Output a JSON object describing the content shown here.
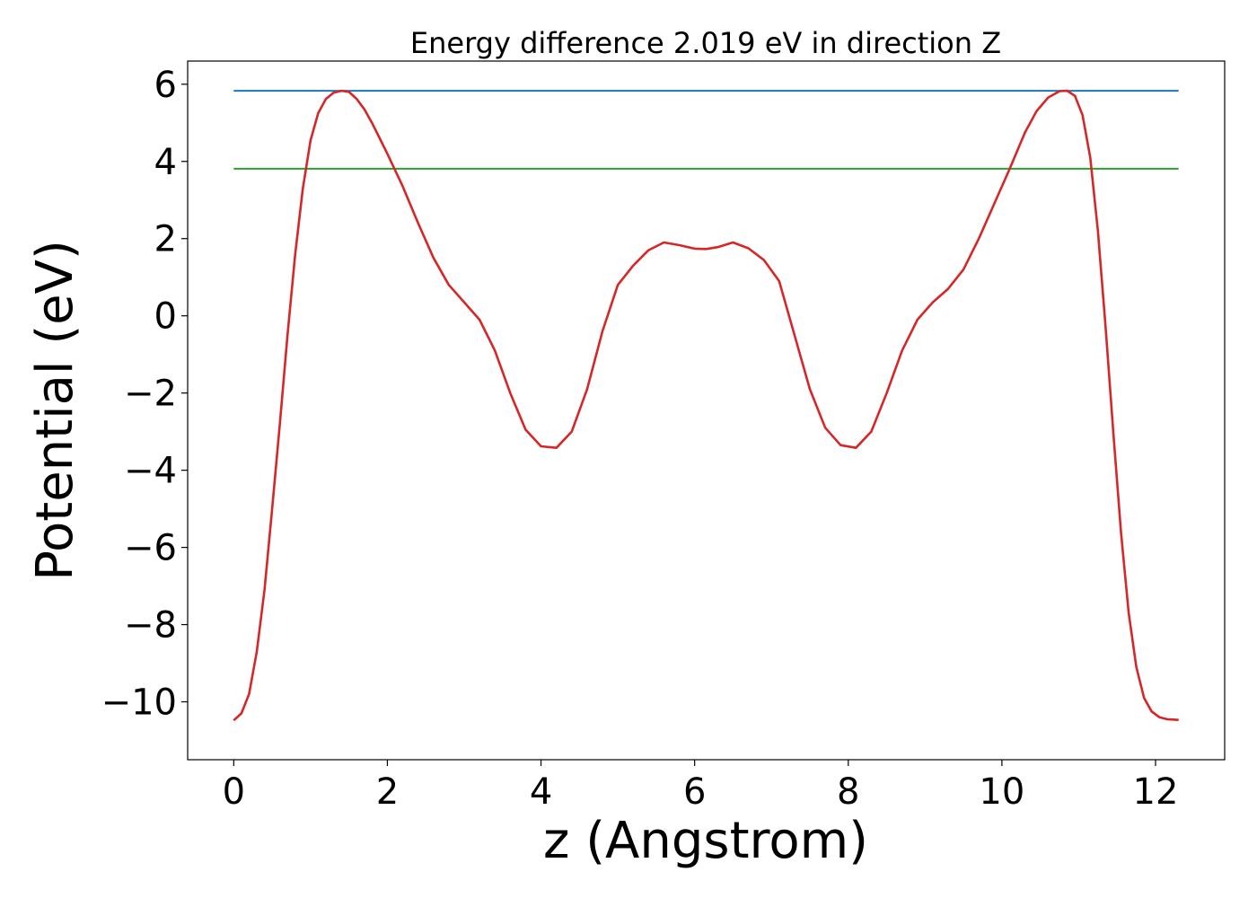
{
  "chart_data": {
    "type": "line",
    "title": "Energy difference 2.019 eV in direction Z",
    "xlabel": "z (Angstrom)",
    "ylabel": "Potential (eV)",
    "xlim": [
      -0.6,
      12.9
    ],
    "ylim": [
      -11.5,
      6.6
    ],
    "xticks": [
      0,
      2,
      4,
      6,
      8,
      10,
      12
    ],
    "xtick_labels": [
      "0",
      "2",
      "4",
      "6",
      "8",
      "10",
      "12"
    ],
    "yticks": [
      6,
      4,
      2,
      0,
      -2,
      -4,
      -6,
      -8,
      -10
    ],
    "ytick_labels": [
      "6",
      "4",
      "2",
      "0",
      "−2",
      "−4",
      "−6",
      "−8",
      "−10"
    ],
    "grid": false,
    "legend": "none",
    "series": [
      {
        "color": "#1f77b4",
        "x": [
          0.0,
          12.3
        ],
        "y": [
          5.83,
          5.83
        ]
      },
      {
        "color": "#2ca02c",
        "x": [
          0.0,
          12.3
        ],
        "y": [
          3.81,
          3.81
        ]
      },
      {
        "color": "#d62728",
        "x": [
          0.0,
          0.1,
          0.2,
          0.3,
          0.4,
          0.5,
          0.6,
          0.7,
          0.8,
          0.9,
          1.0,
          1.1,
          1.2,
          1.3,
          1.4,
          1.5,
          1.6,
          1.7,
          1.8,
          1.9,
          2.0,
          2.2,
          2.4,
          2.6,
          2.8,
          3.0,
          3.2,
          3.4,
          3.6,
          3.8,
          4.0,
          4.2,
          4.4,
          4.6,
          4.8,
          5.0,
          5.2,
          5.4,
          5.6,
          5.8,
          6.0,
          6.15,
          6.3,
          6.5,
          6.7,
          6.9,
          7.1,
          7.3,
          7.5,
          7.7,
          7.9,
          8.1,
          8.3,
          8.5,
          8.7,
          8.9,
          9.1,
          9.3,
          9.5,
          9.7,
          9.9,
          10.1,
          10.3,
          10.45,
          10.6,
          10.75,
          10.85,
          10.95,
          11.05,
          11.15,
          11.25,
          11.35,
          11.45,
          11.55,
          11.65,
          11.75,
          11.85,
          11.95,
          12.05,
          12.15,
          12.3
        ],
        "y": [
          -10.48,
          -10.3,
          -9.8,
          -8.7,
          -7.1,
          -5.0,
          -2.8,
          -0.5,
          1.6,
          3.3,
          4.55,
          5.25,
          5.62,
          5.78,
          5.83,
          5.8,
          5.62,
          5.35,
          5.0,
          4.6,
          4.2,
          3.35,
          2.4,
          1.5,
          0.8,
          0.35,
          -0.1,
          -0.9,
          -2.0,
          -2.95,
          -3.38,
          -3.42,
          -3.0,
          -1.9,
          -0.4,
          0.8,
          1.3,
          1.7,
          1.9,
          1.83,
          1.74,
          1.73,
          1.78,
          1.9,
          1.75,
          1.45,
          0.9,
          -0.5,
          -1.9,
          -2.9,
          -3.35,
          -3.42,
          -3.0,
          -2.0,
          -0.9,
          -0.1,
          0.35,
          0.7,
          1.2,
          2.0,
          2.9,
          3.8,
          4.75,
          5.3,
          5.65,
          5.82,
          5.83,
          5.7,
          5.2,
          4.1,
          2.2,
          -0.3,
          -3.0,
          -5.6,
          -7.7,
          -9.1,
          -9.9,
          -10.25,
          -10.4,
          -10.45,
          -10.47
        ]
      }
    ]
  }
}
